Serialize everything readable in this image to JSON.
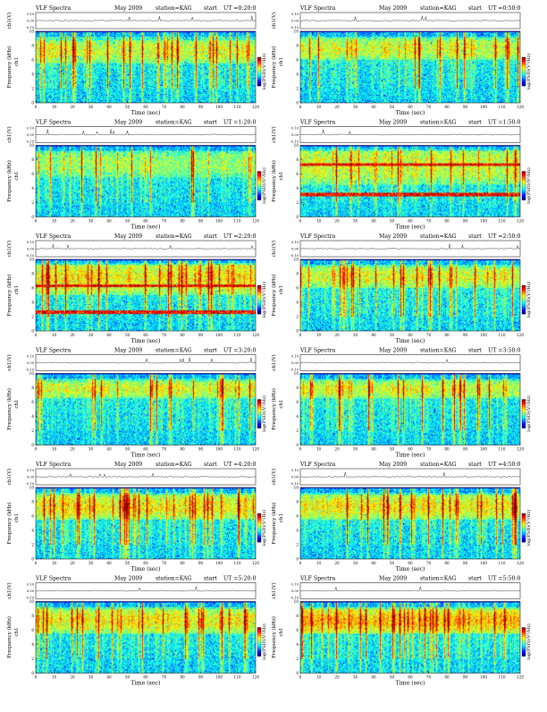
{
  "figure": {
    "panel_header": {
      "prefix": "VLF Spectra",
      "date": "May 2009",
      "station": "station=KAG",
      "start": "start",
      "ut_label": "UT ="
    },
    "ch_label": "ch1(V)",
    "freq_label": "Frequency (kHz)",
    "ch_tag": "ch1",
    "xlabel": "Time (sec)",
    "colorbar_label": "log(PSD)(V²/Hz)",
    "ch_ticks": [
      "0.10",
      "0.00",
      "-0.10"
    ],
    "colors": {
      "low": "#0000b4",
      "mid": "#2ec8c8",
      "high": "#e00000",
      "background": "#ffffff"
    }
  },
  "chart_data": [
    {
      "type": "heatmap",
      "subtype": "spectrogram",
      "start_ut": "0:20:0",
      "x": {
        "label": "Time (sec)",
        "range": [
          0,
          120
        ],
        "ticks": [
          0,
          10,
          20,
          30,
          40,
          50,
          60,
          70,
          80,
          90,
          100,
          110,
          120
        ]
      },
      "y": {
        "label": "Frequency (kHz)",
        "range": [
          0,
          10
        ],
        "ticks": [
          0,
          2,
          4,
          6,
          8,
          10
        ]
      },
      "ch1_ylim": [
        -0.1,
        0.1
      ],
      "intensity_band_khz": [
        5.5,
        8.8
      ],
      "activity": "moderate",
      "persistent_lines_khz": []
    },
    {
      "type": "heatmap",
      "subtype": "spectrogram",
      "start_ut": "0:50:0",
      "x": {
        "label": "Time (sec)",
        "range": [
          0,
          120
        ],
        "ticks": [
          0,
          10,
          20,
          30,
          40,
          50,
          60,
          70,
          80,
          90,
          100,
          110,
          120
        ]
      },
      "y": {
        "label": "Frequency (kHz)",
        "range": [
          0,
          10
        ],
        "ticks": [
          0,
          2,
          4,
          6,
          8,
          10
        ]
      },
      "ch1_ylim": [
        -0.1,
        0.1
      ],
      "intensity_band_khz": [
        6.0,
        9.0
      ],
      "activity": "moderate",
      "persistent_lines_khz": []
    },
    {
      "type": "heatmap",
      "subtype": "spectrogram",
      "start_ut": "1:20:0",
      "x": {
        "label": "Time (sec)",
        "range": [
          0,
          120
        ],
        "ticks": [
          0,
          10,
          20,
          30,
          40,
          50,
          60,
          70,
          80,
          90,
          100,
          110,
          120
        ]
      },
      "y": {
        "label": "Frequency (kHz)",
        "range": [
          0,
          10
        ],
        "ticks": [
          0,
          2,
          4,
          6,
          8,
          10
        ]
      },
      "ch1_ylim": [
        -0.1,
        0.1
      ],
      "intensity_band_khz": [
        5.5,
        9.0
      ],
      "activity": "low",
      "persistent_lines_khz": []
    },
    {
      "type": "heatmap",
      "subtype": "spectrogram",
      "start_ut": "1:50:0",
      "x": {
        "label": "Time (sec)",
        "range": [
          0,
          120
        ],
        "ticks": [
          0,
          10,
          20,
          30,
          40,
          50,
          60,
          70,
          80,
          90,
          100,
          110,
          120
        ]
      },
      "y": {
        "label": "Frequency (kHz)",
        "range": [
          0,
          10
        ],
        "ticks": [
          0,
          2,
          4,
          6,
          8,
          10
        ]
      },
      "ch1_ylim": [
        -0.1,
        0.1
      ],
      "intensity_band_khz": [
        4.5,
        9.5
      ],
      "activity": "moderate",
      "persistent_lines_khz": [
        7.3,
        3.1
      ]
    },
    {
      "type": "heatmap",
      "subtype": "spectrogram",
      "start_ut": "2:20:0",
      "x": {
        "label": "Time (sec)",
        "range": [
          0,
          120
        ],
        "ticks": [
          0,
          10,
          20,
          30,
          40,
          50,
          60,
          70,
          80,
          90,
          100,
          110,
          120
        ]
      },
      "y": {
        "label": "Frequency (kHz)",
        "range": [
          0,
          10
        ],
        "ticks": [
          0,
          2,
          4,
          6,
          8,
          10
        ]
      },
      "ch1_ylim": [
        -0.1,
        0.1
      ],
      "intensity_band_khz": [
        5.0,
        9.5
      ],
      "activity": "high",
      "persistent_lines_khz": [
        6.3,
        2.6
      ]
    },
    {
      "type": "heatmap",
      "subtype": "spectrogram",
      "start_ut": "2:50:0",
      "x": {
        "label": "Time (sec)",
        "range": [
          0,
          120
        ],
        "ticks": [
          0,
          10,
          20,
          30,
          40,
          50,
          60,
          70,
          80,
          90,
          100,
          110,
          120
        ]
      },
      "y": {
        "label": "Frequency (kHz)",
        "range": [
          0,
          10
        ],
        "ticks": [
          0,
          2,
          4,
          6,
          8,
          10
        ]
      },
      "ch1_ylim": [
        -0.1,
        0.1
      ],
      "intensity_band_khz": [
        6.0,
        9.0
      ],
      "activity": "moderate",
      "persistent_lines_khz": []
    },
    {
      "type": "heatmap",
      "subtype": "spectrogram",
      "start_ut": "3:20:0",
      "x": {
        "label": "Time (sec)",
        "range": [
          0,
          120
        ],
        "ticks": [
          0,
          10,
          20,
          30,
          40,
          50,
          60,
          70,
          80,
          90,
          100,
          110,
          120
        ]
      },
      "y": {
        "label": "Frequency (kHz)",
        "range": [
          0,
          10
        ],
        "ticks": [
          0,
          2,
          4,
          6,
          8,
          10
        ]
      },
      "ch1_ylim": [
        -0.1,
        0.1
      ],
      "intensity_band_khz": [
        6.5,
        9.0
      ],
      "activity": "moderate",
      "persistent_lines_khz": []
    },
    {
      "type": "heatmap",
      "subtype": "spectrogram",
      "start_ut": "3:50:0",
      "x": {
        "label": "Time (sec)",
        "range": [
          0,
          120
        ],
        "ticks": [
          0,
          10,
          20,
          30,
          40,
          50,
          60,
          70,
          80,
          90,
          100,
          110,
          120
        ]
      },
      "y": {
        "label": "Frequency (kHz)",
        "range": [
          0,
          10
        ],
        "ticks": [
          0,
          2,
          4,
          6,
          8,
          10
        ]
      },
      "ch1_ylim": [
        -0.1,
        0.1
      ],
      "intensity_band_khz": [
        6.5,
        9.0
      ],
      "activity": "moderate",
      "persistent_lines_khz": []
    },
    {
      "type": "heatmap",
      "subtype": "spectrogram",
      "start_ut": "4:20:0",
      "x": {
        "label": "Time (sec)",
        "range": [
          0,
          120
        ],
        "ticks": [
          0,
          10,
          20,
          30,
          40,
          50,
          60,
          70,
          80,
          90,
          100,
          110,
          120
        ]
      },
      "y": {
        "label": "Frequency (kHz)",
        "range": [
          0,
          10
        ],
        "ticks": [
          0,
          2,
          4,
          6,
          8,
          10
        ]
      },
      "ch1_ylim": [
        -0.1,
        0.1
      ],
      "intensity_band_khz": [
        5.5,
        9.0
      ],
      "activity": "high",
      "persistent_lines_khz": []
    },
    {
      "type": "heatmap",
      "subtype": "spectrogram",
      "start_ut": "4:50:0",
      "x": {
        "label": "Time (sec)",
        "range": [
          0,
          120
        ],
        "ticks": [
          0,
          10,
          20,
          30,
          40,
          50,
          60,
          70,
          80,
          90,
          100,
          110,
          120
        ]
      },
      "y": {
        "label": "Frequency (kHz)",
        "range": [
          0,
          10
        ],
        "ticks": [
          0,
          2,
          4,
          6,
          8,
          10
        ]
      },
      "ch1_ylim": [
        -0.1,
        0.1
      ],
      "intensity_band_khz": [
        5.5,
        9.0
      ],
      "activity": "high",
      "persistent_lines_khz": []
    },
    {
      "type": "heatmap",
      "subtype": "spectrogram",
      "start_ut": "5:20:0",
      "x": {
        "label": "Time (sec)",
        "range": [
          0,
          120
        ],
        "ticks": [
          0,
          10,
          20,
          30,
          40,
          50,
          60,
          70,
          80,
          90,
          100,
          110,
          120
        ]
      },
      "y": {
        "label": "Frequency (kHz)",
        "range": [
          0,
          10
        ],
        "ticks": [
          0,
          2,
          4,
          6,
          8,
          10
        ]
      },
      "ch1_ylim": [
        -0.1,
        0.1
      ],
      "intensity_band_khz": [
        5.5,
        9.0
      ],
      "activity": "high",
      "persistent_lines_khz": []
    },
    {
      "type": "heatmap",
      "subtype": "spectrogram",
      "start_ut": "5:50:0",
      "x": {
        "label": "Time (sec)",
        "range": [
          0,
          120
        ],
        "ticks": [
          0,
          10,
          20,
          30,
          40,
          50,
          60,
          70,
          80,
          90,
          100,
          110,
          120
        ]
      },
      "y": {
        "label": "Frequency (kHz)",
        "range": [
          0,
          10
        ],
        "ticks": [
          0,
          2,
          4,
          6,
          8,
          10
        ]
      },
      "ch1_ylim": [
        -0.1,
        0.1
      ],
      "intensity_band_khz": [
        5.5,
        9.0
      ],
      "activity": "very-high",
      "persistent_lines_khz": []
    }
  ]
}
